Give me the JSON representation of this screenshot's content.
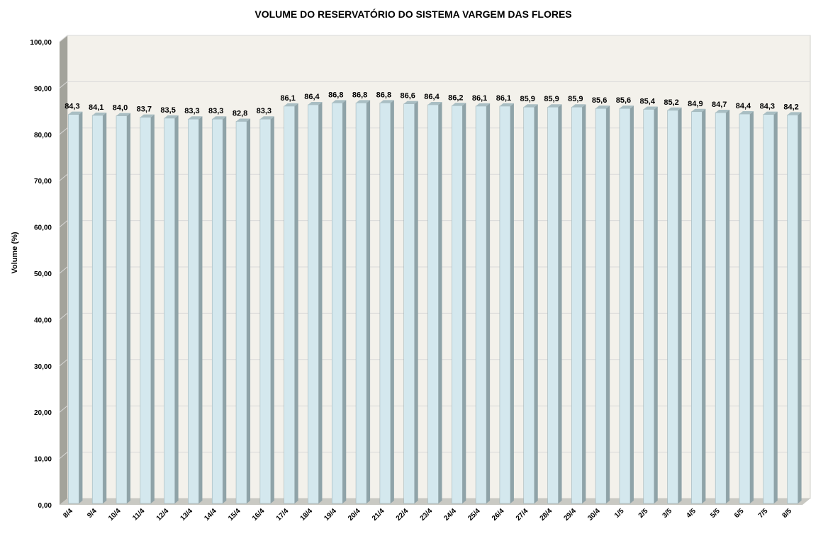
{
  "chart_data": {
    "type": "bar",
    "title": "VOLUME DO RESERVATÓRIO DO SISTEMA VARGEM DAS FLORES",
    "xlabel": "",
    "ylabel": "Volume (%)",
    "ylim": [
      0,
      100
    ],
    "y_ticks": [
      "0,00",
      "10,00",
      "20,00",
      "30,00",
      "40,00",
      "50,00",
      "60,00",
      "70,00",
      "80,00",
      "90,00",
      "100,00"
    ],
    "categories": [
      "8/4",
      "9/4",
      "10/4",
      "11/4",
      "12/4",
      "13/4",
      "14/4",
      "15/4",
      "16/4",
      "17/4",
      "18/4",
      "19/4",
      "20/4",
      "21/4",
      "22/4",
      "23/4",
      "24/4",
      "25/4",
      "26/4",
      "27/4",
      "28/4",
      "29/4",
      "30/4",
      "1/5",
      "2/5",
      "3/5",
      "4/5",
      "5/5",
      "6/5",
      "7/5",
      "8/5"
    ],
    "values": [
      84.3,
      84.1,
      84.0,
      83.7,
      83.5,
      83.3,
      83.3,
      82.8,
      83.3,
      86.1,
      86.4,
      86.8,
      86.8,
      86.8,
      86.6,
      86.4,
      86.2,
      86.1,
      86.1,
      85.9,
      85.9,
      85.9,
      85.6,
      85.6,
      85.4,
      85.2,
      84.9,
      84.7,
      84.4,
      84.3,
      84.2
    ],
    "data_labels": [
      "84,3",
      "84,1",
      "84,0",
      "83,7",
      "83,5",
      "83,3",
      "83,3",
      "82,8",
      "83,3",
      "86,1",
      "86,4",
      "86,8",
      "86,8",
      "86,8",
      "86,6",
      "86,4",
      "86,2",
      "86,1",
      "86,1",
      "85,9",
      "85,9",
      "85,9",
      "85,6",
      "85,6",
      "85,4",
      "85,2",
      "84,9",
      "84,7",
      "84,4",
      "84,3",
      "84,2"
    ],
    "grid": true,
    "legend": "none",
    "colors": {
      "bar_front": "#d4e8ee",
      "bar_side": "#8fa3a8",
      "bar_top": "#a9bec3",
      "plot_back": "#f3f1eb",
      "side_wall": "#a3a39b",
      "floor": "#c9c9c3",
      "gridline": "#d9d9d9"
    }
  }
}
